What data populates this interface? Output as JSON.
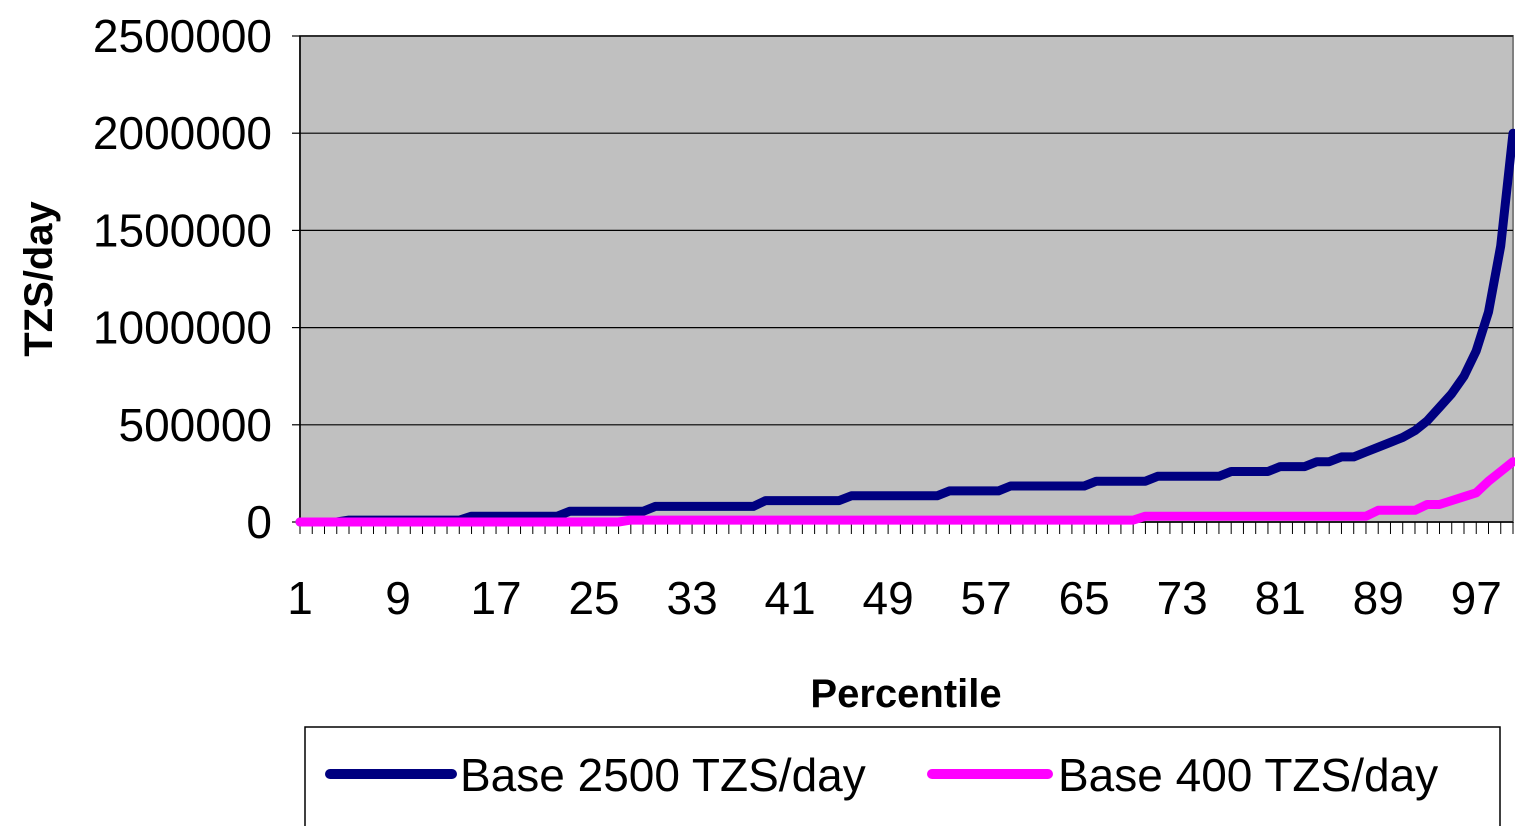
{
  "chart_data": {
    "type": "line",
    "xlabel": "Percentile",
    "ylabel": "TZS/day",
    "xlim": [
      1,
      100
    ],
    "ylim": [
      0,
      2500000
    ],
    "y_ticks": [
      0,
      500000,
      1000000,
      1500000,
      2000000,
      2500000
    ],
    "y_tick_labels": [
      "0",
      "500000",
      "1000000",
      "1500000",
      "2000000",
      "2500000"
    ],
    "x_tick_labels": [
      "1",
      "9",
      "17",
      "25",
      "33",
      "41",
      "49",
      "57",
      "65",
      "73",
      "81",
      "89",
      "97"
    ],
    "x_tick_values": [
      1,
      9,
      17,
      25,
      33,
      41,
      49,
      57,
      65,
      73,
      81,
      89,
      97
    ],
    "plot_background": "#c0c0c0",
    "grid": "horizontal",
    "legend_position": "bottom",
    "series": [
      {
        "name": "Base 2500 TZS/day",
        "color": "#000080",
        "points": [
          [
            1,
            0
          ],
          [
            3,
            0
          ],
          [
            4,
            0
          ],
          [
            5,
            10000
          ],
          [
            14,
            10000
          ],
          [
            15,
            30000
          ],
          [
            22,
            30000
          ],
          [
            23,
            55000
          ],
          [
            29,
            55000
          ],
          [
            30,
            80000
          ],
          [
            38,
            80000
          ],
          [
            39,
            110000
          ],
          [
            45,
            110000
          ],
          [
            46,
            135000
          ],
          [
            53,
            135000
          ],
          [
            54,
            160000
          ],
          [
            58,
            160000
          ],
          [
            59,
            185000
          ],
          [
            65,
            185000
          ],
          [
            66,
            210000
          ],
          [
            70,
            210000
          ],
          [
            71,
            235000
          ],
          [
            76,
            235000
          ],
          [
            77,
            260000
          ],
          [
            80,
            260000
          ],
          [
            81,
            285000
          ],
          [
            83,
            285000
          ],
          [
            84,
            310000
          ],
          [
            85,
            310000
          ],
          [
            86,
            335000
          ],
          [
            87,
            335000
          ],
          [
            88,
            360000
          ],
          [
            89,
            385000
          ],
          [
            90,
            410000
          ],
          [
            91,
            435000
          ],
          [
            92,
            470000
          ],
          [
            93,
            520000
          ],
          [
            94,
            590000
          ],
          [
            95,
            660000
          ],
          [
            96,
            750000
          ],
          [
            97,
            880000
          ],
          [
            98,
            1080000
          ],
          [
            99,
            1420000
          ],
          [
            100,
            2000000
          ]
        ]
      },
      {
        "name": "Base 400 TZS/day",
        "color": "#ff00ff",
        "points": [
          [
            1,
            0
          ],
          [
            27,
            0
          ],
          [
            28,
            10000
          ],
          [
            69,
            10000
          ],
          [
            70,
            30000
          ],
          [
            88,
            30000
          ],
          [
            89,
            60000
          ],
          [
            92,
            60000
          ],
          [
            93,
            90000
          ],
          [
            94,
            90000
          ],
          [
            95,
            110000
          ],
          [
            96,
            130000
          ],
          [
            97,
            150000
          ],
          [
            98,
            210000
          ],
          [
            99,
            260000
          ],
          [
            100,
            310000
          ]
        ]
      }
    ]
  }
}
